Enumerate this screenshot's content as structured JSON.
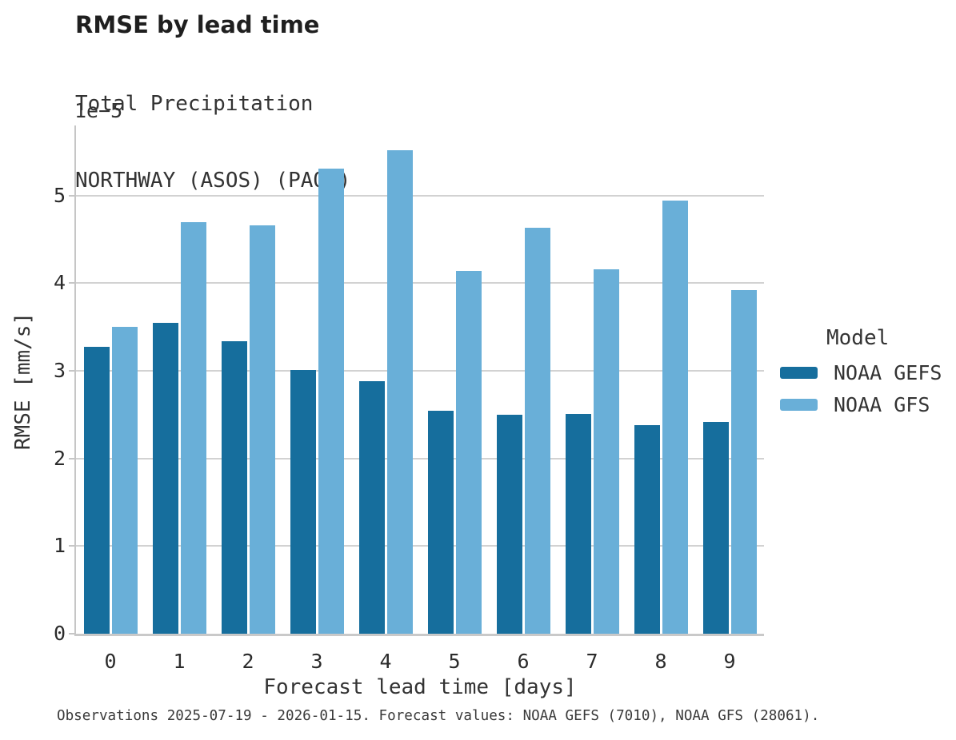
{
  "header": {
    "title": "RMSE by lead time",
    "subtitle_lines": [
      "Total Precipitation",
      "NORTHWAY (ASOS) (PAOR)"
    ]
  },
  "chart_data": {
    "type": "bar",
    "title": "RMSE by lead time",
    "subtitle": [
      "Total Precipitation",
      "NORTHWAY (ASOS) (PAOR)"
    ],
    "categories": [
      "0",
      "1",
      "2",
      "3",
      "4",
      "5",
      "6",
      "7",
      "8",
      "9"
    ],
    "series": [
      {
        "name": "NOAA GEFS",
        "color": "#166E9D",
        "values": [
          3.27,
          3.55,
          3.34,
          3.01,
          2.88,
          2.54,
          2.5,
          2.51,
          2.38,
          2.42
        ]
      },
      {
        "name": "NOAA GFS",
        "color": "#69AFD8",
        "values": [
          3.5,
          4.7,
          4.66,
          5.31,
          5.52,
          4.14,
          4.63,
          4.16,
          4.94,
          3.92
        ]
      }
    ],
    "value_scale": "1e−5",
    "value_unit": "mm/s (values × 1e-5)",
    "xlabel": "Forecast lead time [days]",
    "ylabel": "RMSE [mm/s]",
    "yticks": [
      0,
      1,
      2,
      3,
      4,
      5
    ],
    "ylim": [
      0,
      5.8
    ],
    "grid": "horizontal",
    "legend_title": "Model",
    "legend_position": "right",
    "style": {
      "gridline_color": "#d2d2d2",
      "spine_color": "#c6c6c6",
      "baseline_color": "#c9c9c9",
      "text_color": "#333333"
    }
  },
  "footer": {
    "caption": "Observations 2025-07-19 - 2026-01-15. Forecast values: NOAA GEFS (7010), NOAA GFS (28061)."
  }
}
